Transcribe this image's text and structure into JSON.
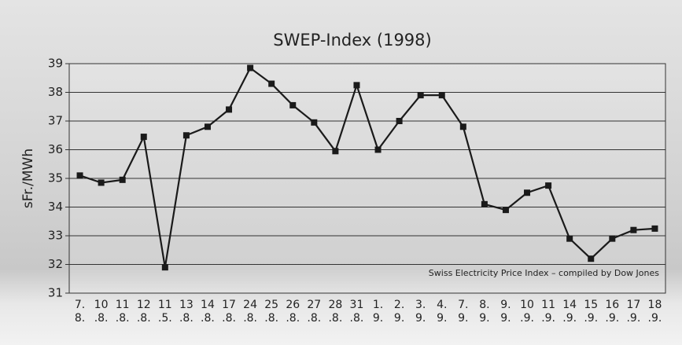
{
  "chart_data": {
    "type": "line",
    "title": "SWEP-Index (1998)",
    "y_label": "sFr./MWh",
    "annotation": "Swiss Electricity Price Index  – compiled by Dow Jones",
    "categories": [
      "7.\n8.",
      "10\n.8.",
      "11\n.8.",
      "12\n.8.",
      "11\n.5.",
      "13\n.8.",
      "14\n.8.",
      "17\n.8.",
      "24\n.8.",
      "25\n.8.",
      "26\n.8.",
      "27\n.8.",
      "28\n.8.",
      "31\n.8.",
      "1.\n9.",
      "2.\n9.",
      "3.\n9.",
      "4.\n9.",
      "7.\n9.",
      "8.\n9.",
      "9.\n9.",
      "10\n.9.",
      "11\n.9.",
      "14\n.9.",
      "15\n.9.",
      "16\n.9.",
      "17\n.9.",
      "18\n.9."
    ],
    "values": [
      35.1,
      34.85,
      34.95,
      36.45,
      31.9,
      36.5,
      36.8,
      37.4,
      38.85,
      38.3,
      37.55,
      36.95,
      35.95,
      38.25,
      36.0,
      37.0,
      37.9,
      37.9,
      36.8,
      34.1,
      33.9,
      34.5,
      34.75,
      32.9,
      32.2,
      32.9,
      33.2,
      33.25
    ],
    "color": "#1a1a1a",
    "ylim": [
      31,
      39
    ],
    "yticks": [
      31,
      32,
      33,
      34,
      35,
      36,
      37,
      38,
      39
    ],
    "grid": true
  }
}
